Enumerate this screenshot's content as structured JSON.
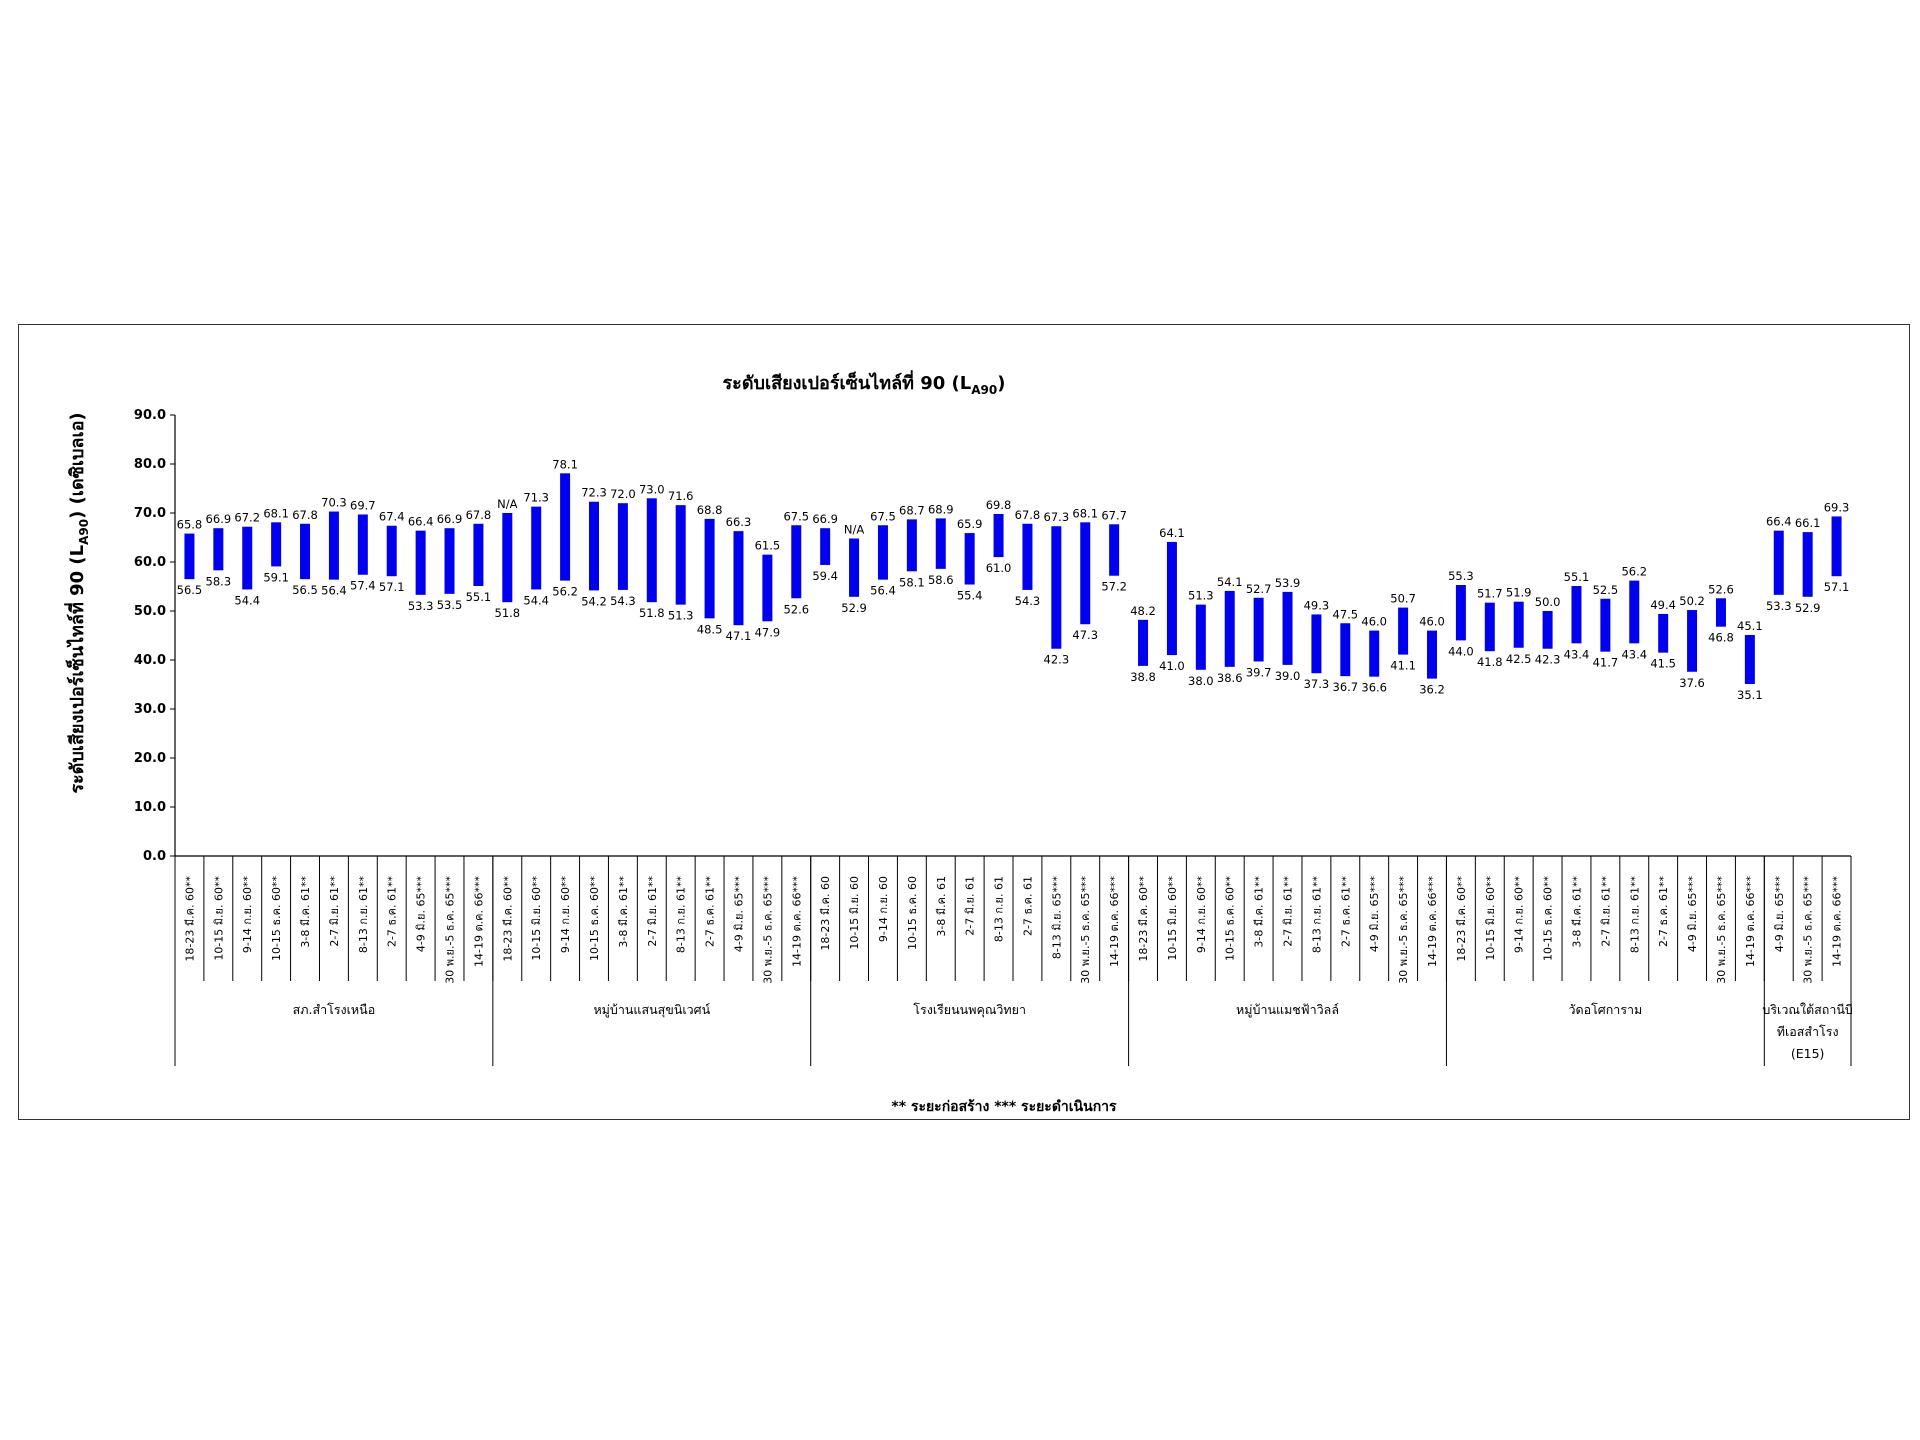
{
  "chart_data": {
    "type": "bar",
    "subtype": "floating-range",
    "title": "ระดับเสียงเปอร์เซ็นไทล์ที่ 90 (L",
    "title_sub": "A90",
    "title_close": ")",
    "ylabel": "ระดับเสียงเปอร์เซ็นไทล์ที่ 90 (L",
    "ylabel_sub": "A90",
    "ylabel_close": ") (เดซิเบลเอ)",
    "ylim": [
      0,
      90
    ],
    "yticks": [
      "0.0",
      "10.0",
      "20.0",
      "30.0",
      "40.0",
      "50.0",
      "60.0",
      "70.0",
      "80.0",
      "90.0"
    ],
    "bar_color": "#0000ee",
    "legend_text": "** ระยะก่อสร้าง   *** ระยะดำเนินการ",
    "categories": [
      "18-23 มี.ค. 60**",
      "10-15 มิ.ย. 60**",
      "9-14 ก.ย. 60**",
      "10-15 ธ.ค. 60**",
      "3-8 มี.ค. 61**",
      "2-7 มิ.ย. 61**",
      "8-13 ก.ย. 61**",
      "2-7 ธ.ค. 61**",
      "4-9 มิ.ย. 65***",
      "30 พ.ย.-5 ธ.ค. 65***",
      "14-19 ต.ค. 66***",
      "18-23 มี.ค. 60**",
      "10-15 มิ.ย. 60**",
      "9-14 ก.ย. 60**",
      "10-15 ธ.ค. 60**",
      "3-8 มี.ค. 61**",
      "2-7 มิ.ย. 61**",
      "8-13 ก.ย. 61**",
      "2-7 ธ.ค. 61**",
      "4-9 มิ.ย. 65***",
      "30 พ.ย.-5 ธ.ค. 65***",
      "14-19 ต.ค. 66***",
      "18-23 มี.ค. 60",
      "10-15 มิ.ย. 60",
      "9-14 ก.ย. 60",
      "10-15 ธ.ค. 60",
      "3-8 มี.ค. 61",
      "2-7 มิ.ย. 61",
      "8-13 ก.ย. 61",
      "2-7 ธ.ค. 61",
      "8-13 มิ.ย. 65***",
      "30 พ.ย.-5 ธ.ค. 65***",
      "14-19 ต.ค. 66***",
      "18-23 มี.ค. 60**",
      "10-15 มิ.ย. 60**",
      "9-14 ก.ย. 60**",
      "10-15 ธ.ค. 60**",
      "3-8 มี.ค. 61**",
      "2-7 มิ.ย. 61**",
      "8-13 ก.ย. 61**",
      "2-7 ธ.ค. 61**",
      "4-9 มิ.ย. 65***",
      "30 พ.ย.-5 ธ.ค. 65***",
      "14-19 ต.ค. 66***",
      "18-23 มี.ค. 60**",
      "10-15 มิ.ย. 60**",
      "9-14 ก.ย. 60**",
      "10-15 ธ.ค. 60**",
      "3-8 มี.ค. 61**",
      "2-7 มิ.ย. 61**",
      "8-13 ก.ย. 61**",
      "2-7 ธ.ค. 61**",
      "4-9 มิ.ย. 65***",
      "30 พ.ย.-5 ธ.ค. 65***",
      "14-19 ต.ค. 66***",
      "4-9 มิ.ย. 65***",
      "30 พ.ย.-5 ธ.ค. 65***",
      "14-19 ต.ค. 66***"
    ],
    "max_values": [
      65.8,
      66.9,
      67.2,
      68.1,
      67.8,
      70.3,
      69.7,
      67.4,
      66.4,
      66.9,
      67.8,
      70.0,
      71.3,
      78.1,
      72.3,
      72.0,
      73.0,
      71.6,
      68.8,
      66.3,
      61.5,
      67.5,
      66.9,
      64.8,
      67.5,
      68.7,
      68.9,
      65.9,
      69.8,
      67.8,
      67.3,
      68.1,
      67.7,
      48.2,
      64.1,
      51.3,
      54.1,
      52.7,
      53.9,
      49.3,
      47.5,
      46.0,
      50.7,
      46.0,
      55.3,
      51.7,
      51.9,
      50.0,
      55.1,
      52.5,
      56.2,
      49.4,
      50.2,
      52.6,
      45.1,
      66.4,
      66.1,
      69.3
    ],
    "min_values": [
      56.5,
      58.3,
      54.4,
      59.1,
      56.5,
      56.4,
      57.4,
      57.1,
      53.3,
      53.5,
      55.1,
      51.8,
      54.4,
      56.2,
      54.2,
      54.3,
      51.8,
      51.3,
      48.5,
      47.1,
      47.9,
      52.6,
      59.4,
      52.9,
      56.4,
      58.1,
      58.6,
      55.4,
      61.0,
      54.3,
      42.3,
      47.3,
      57.2,
      38.8,
      41.0,
      38.0,
      38.6,
      39.7,
      39.0,
      37.3,
      36.7,
      36.6,
      41.1,
      36.2,
      44.0,
      41.8,
      42.5,
      42.3,
      43.4,
      41.7,
      43.4,
      41.5,
      37.6,
      46.8,
      35.1,
      53.3,
      52.9,
      57.1
    ],
    "max_labels": [
      "65.8",
      "66.9",
      "67.2",
      "68.1",
      "67.8",
      "70.3",
      "69.7",
      "67.4",
      "66.4",
      "66.9",
      "67.8",
      "N/A",
      "71.3",
      "78.1",
      "72.3",
      "72.0",
      "73.0",
      "71.6",
      "68.8",
      "66.3",
      "61.5",
      "67.5",
      "66.9",
      "N/A",
      "67.5",
      "68.7",
      "68.9",
      "65.9",
      "69.8",
      "67.8",
      "67.3",
      "68.1",
      "67.7",
      "48.2",
      "64.1",
      "51.3",
      "54.1",
      "52.7",
      "53.9",
      "49.3",
      "47.5",
      "46.0",
      "50.7",
      "46.0",
      "55.3",
      "51.7",
      "51.9",
      "50.0",
      "55.1",
      "52.5",
      "56.2",
      "49.4",
      "50.2",
      "52.6",
      "45.1",
      "66.4",
      "66.1",
      "69.3"
    ],
    "min_labels": [
      "56.5",
      "58.3",
      "54.4",
      "59.1",
      "56.5",
      "56.4",
      "57.4",
      "57.1",
      "53.3",
      "53.5",
      "55.1",
      "51.8",
      "54.4",
      "56.2",
      "54.2",
      "54.3",
      "51.8",
      "51.3",
      "48.5",
      "47.1",
      "47.9",
      "52.6",
      "59.4",
      "52.9",
      "56.4",
      "58.1",
      "58.6",
      "55.4",
      "61.0",
      "54.3",
      "42.3",
      "47.3",
      "57.2",
      "38.8",
      "41.0",
      "38.0",
      "38.6",
      "39.7",
      "39.0",
      "37.3",
      "36.7",
      "36.6",
      "41.1",
      "36.2",
      "44.0",
      "41.8",
      "42.5",
      "42.3",
      "43.4",
      "41.7",
      "43.4",
      "41.5",
      "37.6",
      "46.8",
      "35.1",
      "53.3",
      "52.9",
      "57.1"
    ],
    "groups": [
      {
        "label_lines": [
          "สภ.สำโรงเหนือ"
        ],
        "count": 11
      },
      {
        "label_lines": [
          "หมู่บ้านแสนสุขนิเวศน์"
        ],
        "count": 11
      },
      {
        "label_lines": [
          "โรงเรียนนพคุณวิทยา"
        ],
        "count": 11
      },
      {
        "label_lines": [
          "หมู่บ้านแมชฟ้าวิลล์"
        ],
        "count": 11
      },
      {
        "label_lines": [
          "วัดอโศการาม"
        ],
        "count": 11
      },
      {
        "label_lines": [
          "บริเวณใต้สถานีบี",
          "ทีเอสสำโรง",
          "(E15)"
        ],
        "count": 3
      }
    ]
  }
}
